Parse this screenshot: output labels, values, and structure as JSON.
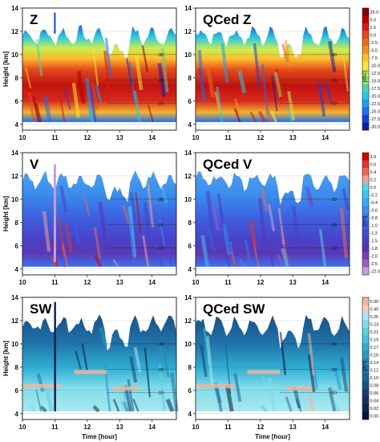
{
  "chart_data": {
    "type": "heatmap",
    "x_label": "Time [hour]",
    "y_label": "Height [km]",
    "x_ticks": [
      10,
      11,
      12,
      13,
      14
    ],
    "y_ticks": [
      4,
      6,
      8,
      10,
      12,
      14
    ],
    "xlim": [
      10,
      14.75
    ],
    "ylim": [
      3.5,
      14
    ],
    "temperature_contour_labels": [
      {
        "label": "-30",
        "height_km": 10.0
      },
      {
        "label": "-20",
        "height_km": 7.8
      },
      {
        "label": "-10",
        "height_km": 5.8
      }
    ],
    "rows": [
      {
        "variable": "Z",
        "panels": [
          {
            "title": "Z"
          },
          {
            "title": "QCed Z"
          }
        ],
        "colorbar": {
          "unit": "[dBZ]",
          "labels": [
            "25.0",
            "5.0",
            "2.5",
            "0.0",
            "-2.5",
            "-5.0",
            "-7.5",
            "-10.0",
            "-12.5",
            "-15.0",
            "-17.5",
            "-20.0",
            "-22.5",
            "-25.0",
            "-27.5",
            "-30.0"
          ],
          "colors": [
            "#8b0000",
            "#b30000",
            "#d7191c",
            "#e34a1c",
            "#ee6a1a",
            "#f7931e",
            "#fdbf2d",
            "#f6e73b",
            "#c9ed52",
            "#8fdf6b",
            "#4fd3a6",
            "#2bc7e0",
            "#1e9cf0",
            "#1f6ef0",
            "#1d3fd8",
            "#15209e"
          ]
        }
      },
      {
        "variable": "V",
        "panels": [
          {
            "title": "V"
          },
          {
            "title": "QCed V"
          }
        ],
        "colorbar": {
          "unit": "[m/s]",
          "labels": [
            "3.0",
            "0.6",
            "0.4",
            "0.2",
            "0.0",
            "-0.2",
            "-0.4",
            "-0.6",
            "-0.8",
            "-1.0",
            "-1.2",
            "-1.5",
            "-1.8",
            "-2.0",
            "-2.5",
            "-22.0"
          ],
          "colors": [
            "#cc0000",
            "#e2342e",
            "#ea6a5f",
            "#f1a19a",
            "#4fd6e8",
            "#3cc3f0",
            "#36a8f2",
            "#3a8cee",
            "#3f73e8",
            "#3d5ee0",
            "#3a4fd4",
            "#4840c4",
            "#5a33b4",
            "#7a3db6",
            "#9b5bc4",
            "#c3a0dc"
          ]
        }
      },
      {
        "variable": "SW",
        "panels": [
          {
            "title": "SW"
          },
          {
            "title": "QCed SW"
          }
        ],
        "colorbar": {
          "unit": "[m/s]",
          "labels": [
            "5.00",
            "0.40",
            "0.25",
            "0.23",
            "0.21",
            "0.19",
            "0.17",
            "0.16",
            "0.14",
            "0.12",
            "0.10",
            "0.08",
            "0.06",
            "0.04",
            "0.02",
            "0.00"
          ],
          "colors": [
            "#f0b59c",
            "#f6cdb8",
            "#a8e9ef",
            "#7fdce9",
            "#5fd0e2",
            "#42c1dc",
            "#2faed4",
            "#269bc8",
            "#2388bb",
            "#1f74aa",
            "#1c6199",
            "#1a4f87",
            "#173f74",
            "#143062",
            "#112350",
            "#0c1538"
          ]
        }
      }
    ]
  }
}
